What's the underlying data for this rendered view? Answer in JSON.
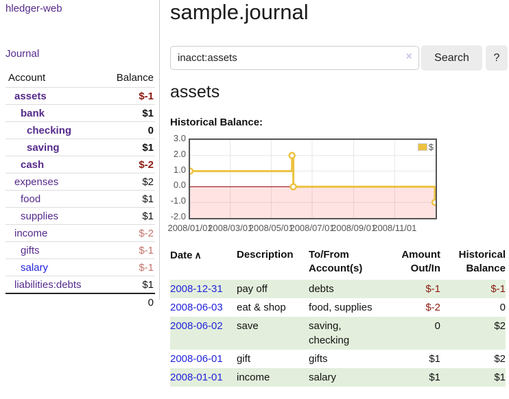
{
  "colors": {
    "link_purple": "#552a8b",
    "link_blue": "#2222dd",
    "negative_strong": "#8b1a10",
    "negative_muted": "#c4736c",
    "row_shade_green": "#e3efdc",
    "chart_line": "#edc240",
    "chart_zero_line": "#8b0000",
    "axis_text": "#545454"
  },
  "sidebar": {
    "brand": "hledger-web",
    "nav_journal": "Journal",
    "accounts": {
      "headers": {
        "account": "Account",
        "balance": "Balance"
      },
      "rows": [
        {
          "name": "assets",
          "indent": 1,
          "bold": true,
          "link": "purple",
          "balance": "$-1",
          "balance_class": "neg-strong"
        },
        {
          "name": "bank",
          "indent": 2,
          "bold": true,
          "link": "purple",
          "balance": "$1",
          "balance_class": ""
        },
        {
          "name": "checking",
          "indent": 3,
          "bold": true,
          "link": "purple",
          "balance": "0",
          "balance_class": ""
        },
        {
          "name": "saving",
          "indent": 3,
          "bold": true,
          "link": "purple",
          "balance": "$1",
          "balance_class": ""
        },
        {
          "name": "cash",
          "indent": 2,
          "bold": true,
          "link": "purple",
          "balance": "$-2",
          "balance_class": "neg-strong"
        },
        {
          "name": "expenses",
          "indent": 1,
          "bold": false,
          "link": "purple",
          "balance": "$2",
          "balance_class": ""
        },
        {
          "name": "food",
          "indent": 2,
          "bold": false,
          "link": "purple",
          "balance": "$1",
          "balance_class": ""
        },
        {
          "name": "supplies",
          "indent": 2,
          "bold": false,
          "link": "purple",
          "balance": "$1",
          "balance_class": ""
        },
        {
          "name": "income",
          "indent": 1,
          "bold": false,
          "link": "purple",
          "balance": "$-2",
          "balance_class": "neg-muted"
        },
        {
          "name": "gifts",
          "indent": 2,
          "bold": false,
          "link": "purple",
          "balance": "$-1",
          "balance_class": "neg-muted"
        },
        {
          "name": "salary",
          "indent": 2,
          "bold": false,
          "link": "blue",
          "balance": "$-1",
          "balance_class": "neg-muted"
        },
        {
          "name": "liabilities:debts",
          "indent": 1,
          "bold": false,
          "link": "purple",
          "balance": "$1",
          "balance_class": ""
        }
      ],
      "total": "0"
    }
  },
  "header": {
    "title": "sample.journal"
  },
  "search": {
    "value": "inacct:assets",
    "clear_glyph": "×",
    "button_label": "Search",
    "help_label": "?"
  },
  "main": {
    "account_title": "assets",
    "chart_title": "Historical Balance:"
  },
  "chart_data": {
    "type": "line",
    "title": "Historical Balance:",
    "step": true,
    "series": [
      {
        "name": "$",
        "color": "#edc240",
        "points": [
          {
            "x": "2008-01-01",
            "y": 1
          },
          {
            "x": "2008-06-01",
            "y": 2
          },
          {
            "x": "2008-06-03",
            "y": 0
          },
          {
            "x": "2008-12-31",
            "y": -1
          }
        ]
      }
    ],
    "xlim": [
      "2008-01-01",
      "2009-01-01"
    ],
    "ylim": [
      -2,
      3
    ],
    "yticks": [
      {
        "v": 3,
        "label": "3.0"
      },
      {
        "v": 2,
        "label": "2.0"
      },
      {
        "v": 1,
        "label": "1.0"
      },
      {
        "v": 0,
        "label": "0.0"
      },
      {
        "v": -1,
        "label": "-1.0"
      },
      {
        "v": -2,
        "label": "-2.0"
      }
    ],
    "xticks": [
      {
        "date": "2008-01-01",
        "label": "2008/01/01"
      },
      {
        "date": "2008-03-01",
        "label": "2008/03/01"
      },
      {
        "date": "2008-05-01",
        "label": "2008/05/01"
      },
      {
        "date": "2008-07-01",
        "label": "2008/07/01"
      },
      {
        "date": "2008-09-01",
        "label": "2008/09/01"
      },
      {
        "date": "2008-11-01",
        "label": "2008/11/01"
      }
    ],
    "grid": true,
    "legend_position": "top-right",
    "negative_region_shaded": true
  },
  "register": {
    "headers": {
      "date": "Date",
      "description": "Description",
      "accounts_line1": "To/From",
      "accounts_line2": "Account(s)",
      "amount_line1": "Amount",
      "amount_line2": "Out/In",
      "balance_line1": "Historical",
      "balance_line2": "Balance"
    },
    "sort_icon_glyph": "∧",
    "rows": [
      {
        "date": "2008-12-31",
        "description": "pay off",
        "accounts_lines": [
          "debts"
        ],
        "amount": "$-1",
        "amount_neg": true,
        "balance": "$-1",
        "balance_neg": true,
        "shaded": true
      },
      {
        "date": "2008-06-03",
        "description": "eat & shop",
        "accounts_lines": [
          "food, supplies"
        ],
        "amount": "$-2",
        "amount_neg": true,
        "balance": "0",
        "balance_neg": false,
        "shaded": false
      },
      {
        "date": "2008-06-02",
        "description": "save",
        "accounts_lines": [
          "saving,",
          "checking"
        ],
        "amount": "0",
        "amount_neg": false,
        "balance": "$2",
        "balance_neg": false,
        "shaded": true
      },
      {
        "date": "2008-06-01",
        "description": "gift",
        "accounts_lines": [
          "gifts"
        ],
        "amount": "$1",
        "amount_neg": false,
        "balance": "$2",
        "balance_neg": false,
        "shaded": false
      },
      {
        "date": "2008-01-01",
        "description": "income",
        "accounts_lines": [
          "salary"
        ],
        "amount": "$1",
        "amount_neg": false,
        "balance": "$1",
        "balance_neg": false,
        "shaded": true
      }
    ]
  }
}
